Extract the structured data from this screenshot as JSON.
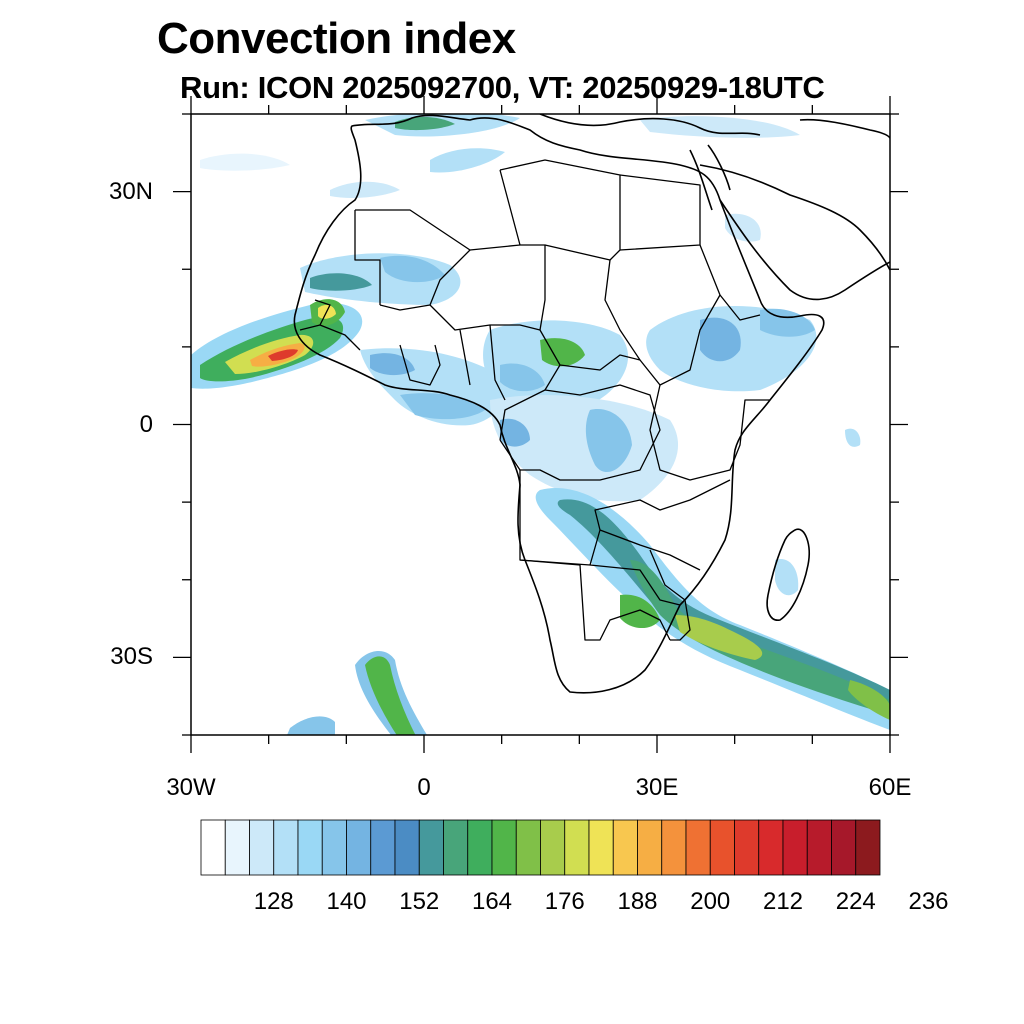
{
  "title": "Convection index",
  "subtitle": "Run: ICON 2025092700,  VT: 20250929-18UTC",
  "map": {
    "region": "Africa",
    "projection": "cylindrical equidistant",
    "lon_range": [
      -30,
      60
    ],
    "lat_range": [
      -40,
      40
    ],
    "lat_ticks": [
      {
        "value": 30,
        "label": "30N"
      },
      {
        "value": 0,
        "label": "0"
      },
      {
        "value": -30,
        "label": "30S"
      }
    ],
    "lon_ticks": [
      {
        "value": -30,
        "label": "30W"
      },
      {
        "value": 0,
        "label": "0"
      },
      {
        "value": 30,
        "label": "30E"
      },
      {
        "value": 60,
        "label": "60E"
      }
    ]
  },
  "colorbar": {
    "colors": [
      "#ffffff",
      "#e8f5fd",
      "#cde9f9",
      "#b3e0f7",
      "#9ad8f5",
      "#86c5ea",
      "#74b4e2",
      "#5b9ad3",
      "#4b8cc4",
      "#45999c",
      "#48a57a",
      "#3fae5d",
      "#51b549",
      "#80c048",
      "#a8cc4c",
      "#d1de51",
      "#efe356",
      "#f8c74f",
      "#f6ae44",
      "#f4923c",
      "#ef7133",
      "#e8522c",
      "#de3a2c",
      "#d82a2c",
      "#c81e2c",
      "#b71b2b",
      "#a6182a",
      "#8c1a1e"
    ],
    "labels": [
      "128",
      "140",
      "152",
      "164",
      "176",
      "188",
      "200",
      "212",
      "224",
      "236"
    ]
  },
  "legend_colors": {
    "land_outline": "#000000",
    "background": "#ffffff"
  }
}
